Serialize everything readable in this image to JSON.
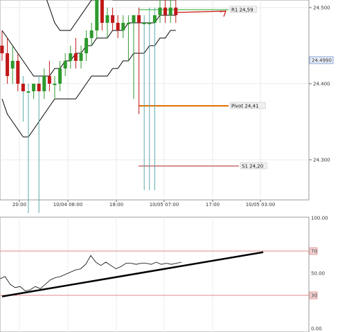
{
  "chart_data": [
    {
      "type": "candlestick",
      "title": "",
      "x_tick_labels": [
        "20:00",
        "10/04 08:00",
        "18:00",
        "10/05 07:00",
        "17:00",
        "10/05 03:00"
      ],
      "y_tick_labels": [
        "24.500",
        "24.400",
        "24.300"
      ],
      "ylim": [
        24.24,
        24.56
      ],
      "current_price": "24.4990",
      "levels": [
        {
          "label": "R1 24,59",
          "value": 24.59,
          "color": "#22aa22"
        },
        {
          "label": "Pivot 24,41",
          "value": 24.41,
          "color": "#e07000"
        },
        {
          "label": "S1 24,20",
          "value": 24.2,
          "color": "#aa2222"
        }
      ],
      "candles": [
        {
          "o": 24.45,
          "h": 24.47,
          "l": 24.43,
          "c": 24.44
        },
        {
          "o": 24.44,
          "h": 24.46,
          "l": 24.4,
          "c": 24.41
        },
        {
          "o": 24.42,
          "h": 24.45,
          "l": 24.4,
          "c": 24.43
        },
        {
          "o": 24.43,
          "h": 24.44,
          "l": 24.39,
          "c": 24.4
        },
        {
          "o": 24.4,
          "h": 24.41,
          "l": 24.35,
          "c": 24.39
        },
        {
          "o": 24.39,
          "h": 24.4,
          "l": 24.23,
          "c": 24.39
        },
        {
          "o": 24.39,
          "h": 24.4,
          "l": 24.38,
          "c": 24.4
        },
        {
          "o": 24.4,
          "h": 24.41,
          "l": 24.23,
          "c": 24.39
        },
        {
          "o": 24.39,
          "h": 24.42,
          "l": 24.38,
          "c": 24.41
        },
        {
          "o": 24.41,
          "h": 24.43,
          "l": 24.39,
          "c": 24.4
        },
        {
          "o": 24.4,
          "h": 24.41,
          "l": 24.38,
          "c": 24.4
        },
        {
          "o": 24.4,
          "h": 24.43,
          "l": 24.39,
          "c": 24.42
        },
        {
          "o": 24.42,
          "h": 24.44,
          "l": 24.41,
          "c": 24.43
        },
        {
          "o": 24.43,
          "h": 24.45,
          "l": 24.42,
          "c": 24.44
        },
        {
          "o": 24.44,
          "h": 24.46,
          "l": 24.42,
          "c": 24.43
        },
        {
          "o": 24.43,
          "h": 24.45,
          "l": 24.42,
          "c": 24.44
        },
        {
          "o": 24.44,
          "h": 24.47,
          "l": 24.43,
          "c": 24.46
        },
        {
          "o": 24.46,
          "h": 24.48,
          "l": 24.45,
          "c": 24.47
        },
        {
          "o": 24.47,
          "h": 24.52,
          "l": 24.46,
          "c": 24.51
        },
        {
          "o": 24.51,
          "h": 24.52,
          "l": 24.47,
          "c": 24.48
        },
        {
          "o": 24.48,
          "h": 24.5,
          "l": 24.46,
          "c": 24.49
        },
        {
          "o": 24.49,
          "h": 24.5,
          "l": 24.47,
          "c": 24.48
        },
        {
          "o": 24.48,
          "h": 24.49,
          "l": 24.46,
          "c": 24.47
        },
        {
          "o": 24.47,
          "h": 24.49,
          "l": 24.46,
          "c": 24.48
        },
        {
          "o": 24.48,
          "h": 24.49,
          "l": 24.43,
          "c": 24.48
        },
        {
          "o": 24.48,
          "h": 24.49,
          "l": 24.38,
          "c": 24.49
        },
        {
          "o": 24.49,
          "h": 24.5,
          "l": 24.36,
          "c": 24.48
        },
        {
          "o": 24.48,
          "h": 24.49,
          "l": 24.26,
          "c": 24.48
        },
        {
          "o": 24.48,
          "h": 24.5,
          "l": 24.26,
          "c": 24.48
        },
        {
          "o": 24.48,
          "h": 24.5,
          "l": 24.26,
          "c": 24.49
        },
        {
          "o": 24.49,
          "h": 24.51,
          "l": 24.48,
          "c": 24.5
        },
        {
          "o": 24.5,
          "h": 24.51,
          "l": 24.48,
          "c": 24.49
        },
        {
          "o": 24.49,
          "h": 24.51,
          "l": 24.48,
          "c": 24.5
        },
        {
          "o": 24.5,
          "h": 24.51,
          "l": 24.48,
          "c": 24.49
        }
      ],
      "bollinger": {
        "upper": [
          24.62,
          24.62,
          24.61,
          24.6,
          24.59,
          24.58,
          24.56,
          24.54,
          24.52,
          24.5,
          24.48,
          24.47,
          24.47,
          24.47,
          24.48,
          24.49,
          24.5,
          24.51,
          24.51,
          24.52,
          24.52,
          24.51,
          24.51,
          24.51,
          24.51,
          24.51,
          24.51,
          24.51,
          24.51,
          24.51,
          24.51,
          24.51,
          24.51,
          24.51
        ],
        "middle": [
          24.47,
          24.46,
          24.45,
          24.44,
          24.43,
          24.42,
          24.41,
          24.41,
          24.41,
          24.41,
          24.42,
          24.42,
          24.43,
          24.43,
          24.44,
          24.44,
          24.45,
          24.45,
          24.46,
          24.46,
          24.46,
          24.47,
          24.47,
          24.47,
          24.48,
          24.48,
          24.48,
          24.48,
          24.48,
          24.48,
          24.49,
          24.49,
          24.49,
          24.49
        ],
        "lower": [
          24.38,
          24.36,
          24.35,
          24.34,
          24.33,
          24.33,
          24.34,
          24.35,
          24.36,
          24.37,
          24.38,
          24.38,
          24.38,
          24.38,
          24.38,
          24.39,
          24.4,
          24.41,
          24.41,
          24.41,
          24.41,
          24.42,
          24.42,
          24.43,
          24.43,
          24.44,
          24.44,
          24.44,
          24.45,
          24.45,
          24.46,
          24.46,
          24.47,
          24.47
        ]
      },
      "projection_arrow": {
        "to_value": 24.59
      }
    },
    {
      "type": "line",
      "y_tick_labels": [
        "100.00",
        "70",
        "50.00",
        "30",
        "0.00"
      ],
      "ylim": [
        0,
        100
      ],
      "reference_levels": [
        70,
        30
      ],
      "series": [
        {
          "values": [
            45,
            47,
            40,
            37,
            38,
            34,
            35,
            38,
            36,
            40,
            44,
            46,
            47,
            49,
            51,
            53,
            54,
            58,
            66,
            60,
            57,
            60,
            57,
            54,
            56,
            59,
            59,
            58,
            59,
            59,
            58,
            60,
            58,
            59,
            58,
            59,
            60
          ]
        }
      ],
      "trendline": {
        "start": 29,
        "end": 69
      }
    }
  ]
}
